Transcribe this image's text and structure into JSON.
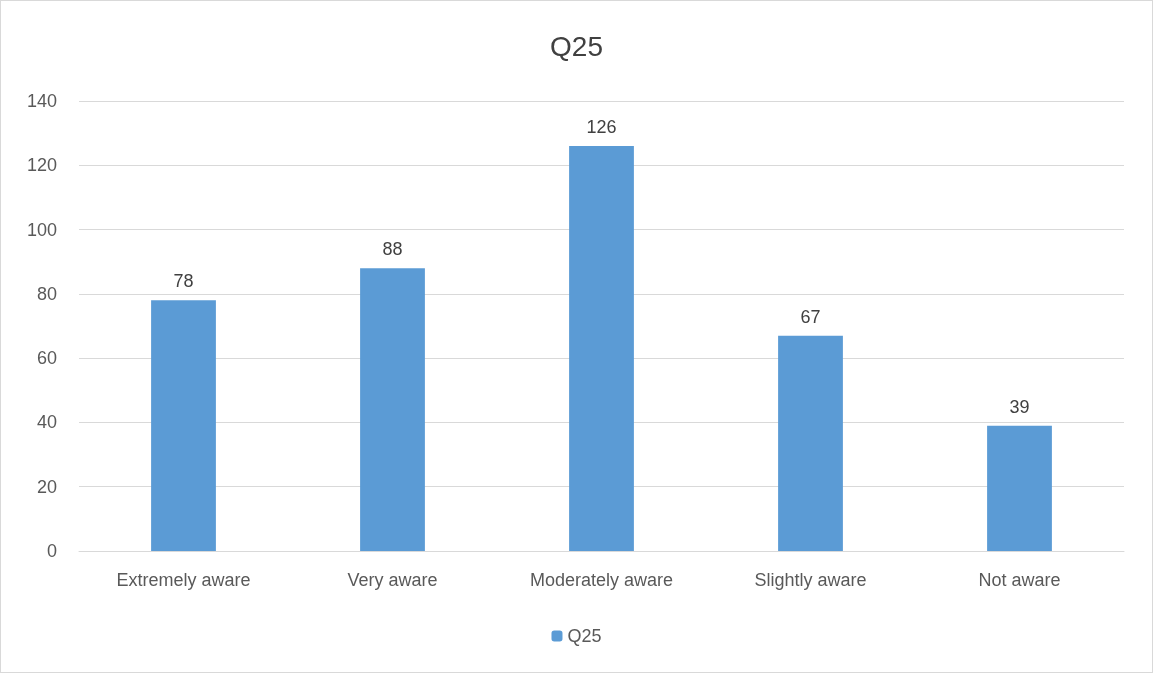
{
  "chart_data": {
    "type": "bar",
    "title": "Q25",
    "categories": [
      "Extremely aware",
      "Very aware",
      "Moderately aware",
      "Slightly aware",
      "Not aware"
    ],
    "series": [
      {
        "name": "Q25",
        "color": "#5b9bd5",
        "values": [
          78,
          88,
          126,
          67,
          39
        ]
      }
    ],
    "ylim": [
      0,
      140
    ],
    "yticks": [
      0,
      20,
      40,
      60,
      80,
      100,
      120,
      140
    ],
    "grid": "y",
    "legend": "bottom",
    "data_labels": true
  }
}
